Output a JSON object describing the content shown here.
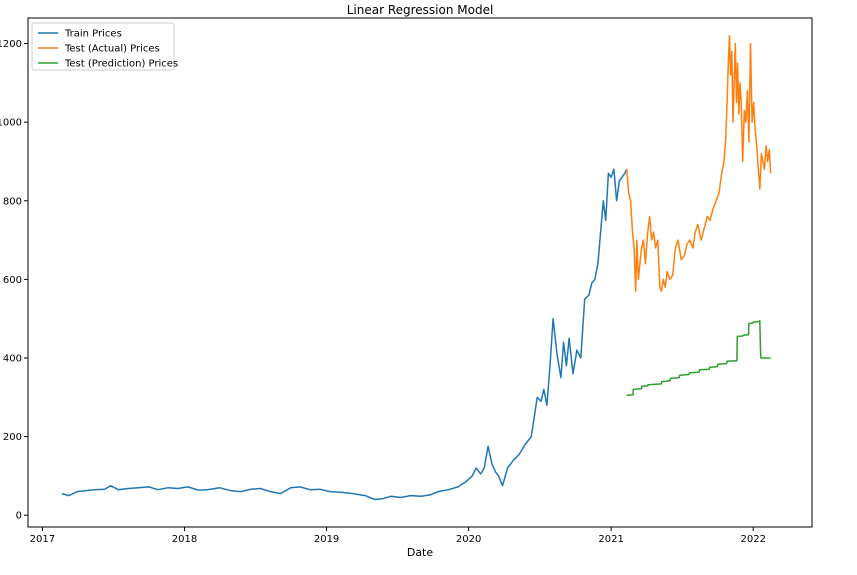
{
  "chart_data": {
    "type": "line",
    "title": "Linear Regression Model",
    "xlabel": "Date",
    "ylabel": "",
    "xlim": [
      "2016-11-25",
      "2022-06-01"
    ],
    "ylim": [
      -30,
      1265
    ],
    "x_ticks": [
      "2017",
      "2018",
      "2019",
      "2020",
      "2021",
      "2022"
    ],
    "y_ticks": [
      0,
      200,
      400,
      600,
      800,
      1000,
      1200
    ],
    "grid": false,
    "legend_position": "top-left",
    "series": [
      {
        "name": "Train Prices",
        "color": "#1f77b4",
        "x": [
          "2017-02-20",
          "2017-03-10",
          "2017-04-01",
          "2017-04-20",
          "2017-05-15",
          "2017-06-10",
          "2017-06-25",
          "2017-07-15",
          "2017-08-10",
          "2017-09-05",
          "2017-10-01",
          "2017-10-25",
          "2017-11-20",
          "2017-12-15",
          "2018-01-10",
          "2018-02-05",
          "2018-03-01",
          "2018-04-01",
          "2018-05-01",
          "2018-05-25",
          "2018-06-20",
          "2018-07-15",
          "2018-08-10",
          "2018-09-05",
          "2018-10-01",
          "2018-10-25",
          "2018-11-20",
          "2018-12-15",
          "2019-01-10",
          "2019-02-10",
          "2019-03-10",
          "2019-04-10",
          "2019-05-05",
          "2019-05-25",
          "2019-06-15",
          "2019-07-10",
          "2019-08-05",
          "2019-09-01",
          "2019-09-25",
          "2019-10-15",
          "2019-11-10",
          "2019-12-05",
          "2019-12-25",
          "2020-01-10",
          "2020-01-20",
          "2020-02-01",
          "2020-02-10",
          "2020-02-20",
          "2020-03-01",
          "2020-03-10",
          "2020-03-18",
          "2020-03-28",
          "2020-04-10",
          "2020-04-25",
          "2020-05-10",
          "2020-05-25",
          "2020-06-10",
          "2020-06-25",
          "2020-07-05",
          "2020-07-12",
          "2020-07-20",
          "2020-07-28",
          "2020-08-05",
          "2020-08-15",
          "2020-08-25",
          "2020-09-01",
          "2020-09-08",
          "2020-09-15",
          "2020-09-25",
          "2020-10-05",
          "2020-10-15",
          "2020-10-25",
          "2020-11-05",
          "2020-11-12",
          "2020-11-20",
          "2020-11-28",
          "2020-12-05",
          "2020-12-12",
          "2020-12-18",
          "2020-12-25",
          "2021-01-01",
          "2021-01-08",
          "2021-01-15",
          "2021-01-22",
          "2021-01-29",
          "2021-02-05",
          "2021-02-10"
        ],
        "values": [
          55,
          50,
          60,
          62,
          65,
          66,
          75,
          65,
          68,
          70,
          72,
          65,
          70,
          68,
          72,
          64,
          65,
          70,
          62,
          60,
          66,
          68,
          60,
          55,
          70,
          72,
          65,
          66,
          60,
          58,
          55,
          50,
          40,
          42,
          48,
          45,
          50,
          48,
          52,
          60,
          65,
          72,
          85,
          100,
          120,
          105,
          120,
          175,
          130,
          110,
          100,
          75,
          120,
          140,
          155,
          180,
          200,
          300,
          290,
          320,
          280,
          380,
          500,
          410,
          350,
          440,
          380,
          450,
          360,
          420,
          400,
          550,
          560,
          590,
          600,
          640,
          720,
          800,
          750,
          870,
          860,
          880,
          800,
          850,
          860,
          870,
          880
        ]
      },
      {
        "name": "Test (Actual) Prices",
        "color": "#ff7f0e",
        "x": [
          "2021-02-10",
          "2021-02-15",
          "2021-02-20",
          "2021-02-25",
          "2021-03-01",
          "2021-03-05",
          "2021-03-08",
          "2021-03-12",
          "2021-03-16",
          "2021-03-20",
          "2021-03-25",
          "2021-03-30",
          "2021-04-05",
          "2021-04-10",
          "2021-04-15",
          "2021-04-20",
          "2021-04-25",
          "2021-05-01",
          "2021-05-06",
          "2021-05-10",
          "2021-05-15",
          "2021-05-20",
          "2021-05-25",
          "2021-06-01",
          "2021-06-08",
          "2021-06-15",
          "2021-06-22",
          "2021-06-30",
          "2021-07-08",
          "2021-07-15",
          "2021-07-22",
          "2021-07-30",
          "2021-08-05",
          "2021-08-12",
          "2021-08-20",
          "2021-08-28",
          "2021-09-05",
          "2021-09-12",
          "2021-09-20",
          "2021-09-28",
          "2021-10-05",
          "2021-10-12",
          "2021-10-18",
          "2021-10-22",
          "2021-10-26",
          "2021-10-29",
          "2021-11-01",
          "2021-11-04",
          "2021-11-07",
          "2021-11-10",
          "2021-11-13",
          "2021-11-16",
          "2021-11-19",
          "2021-11-22",
          "2021-11-25",
          "2021-11-28",
          "2021-12-01",
          "2021-12-05",
          "2021-12-09",
          "2021-12-13",
          "2021-12-17",
          "2021-12-21",
          "2021-12-25",
          "2021-12-29",
          "2022-01-02",
          "2022-01-06",
          "2022-01-10",
          "2022-01-14",
          "2022-01-18",
          "2022-01-22",
          "2022-01-26",
          "2022-01-30",
          "2022-02-03",
          "2022-02-07",
          "2022-02-11",
          "2022-02-15"
        ],
        "values": [
          880,
          820,
          800,
          720,
          680,
          570,
          700,
          600,
          640,
          680,
          700,
          640,
          720,
          760,
          700,
          720,
          680,
          700,
          580,
          570,
          600,
          580,
          620,
          600,
          610,
          680,
          700,
          650,
          660,
          690,
          700,
          680,
          720,
          740,
          700,
          730,
          760,
          750,
          780,
          800,
          820,
          870,
          900,
          950,
          1050,
          1150,
          1220,
          1120,
          1180,
          1000,
          1100,
          1200,
          1050,
          1150,
          1020,
          1100,
          1050,
          900,
          1030,
          1000,
          1080,
          950,
          1200,
          1000,
          1050,
          980,
          940,
          880,
          830,
          920,
          900,
          880,
          940,
          900,
          930,
          870
        ]
      },
      {
        "name": "Test (Prediction) Prices",
        "color": "#2ca02c",
        "x": [
          "2021-02-10",
          "2021-02-26",
          "2021-02-27",
          "2021-03-20",
          "2021-03-21",
          "2021-04-05",
          "2021-04-06",
          "2021-05-10",
          "2021-05-11",
          "2021-06-01",
          "2021-06-02",
          "2021-06-25",
          "2021-06-26",
          "2021-07-20",
          "2021-07-21",
          "2021-08-15",
          "2021-08-16",
          "2021-09-10",
          "2021-09-11",
          "2021-10-01",
          "2021-10-02",
          "2021-10-25",
          "2021-10-26",
          "2021-11-20",
          "2021-11-21",
          "2021-12-05",
          "2021-12-06",
          "2021-12-20",
          "2021-12-21",
          "2021-12-31",
          "2022-01-01",
          "2022-01-17",
          "2022-01-18",
          "2022-01-20",
          "2022-01-21",
          "2022-02-15"
        ],
        "values": [
          305,
          306,
          320,
          322,
          328,
          329,
          332,
          334,
          340,
          342,
          348,
          350,
          356,
          358,
          362,
          364,
          370,
          371,
          376,
          378,
          384,
          386,
          392,
          393,
          455,
          456,
          458,
          459,
          488,
          489,
          491,
          493,
          495,
          410,
          400,
          400
        ]
      }
    ]
  }
}
